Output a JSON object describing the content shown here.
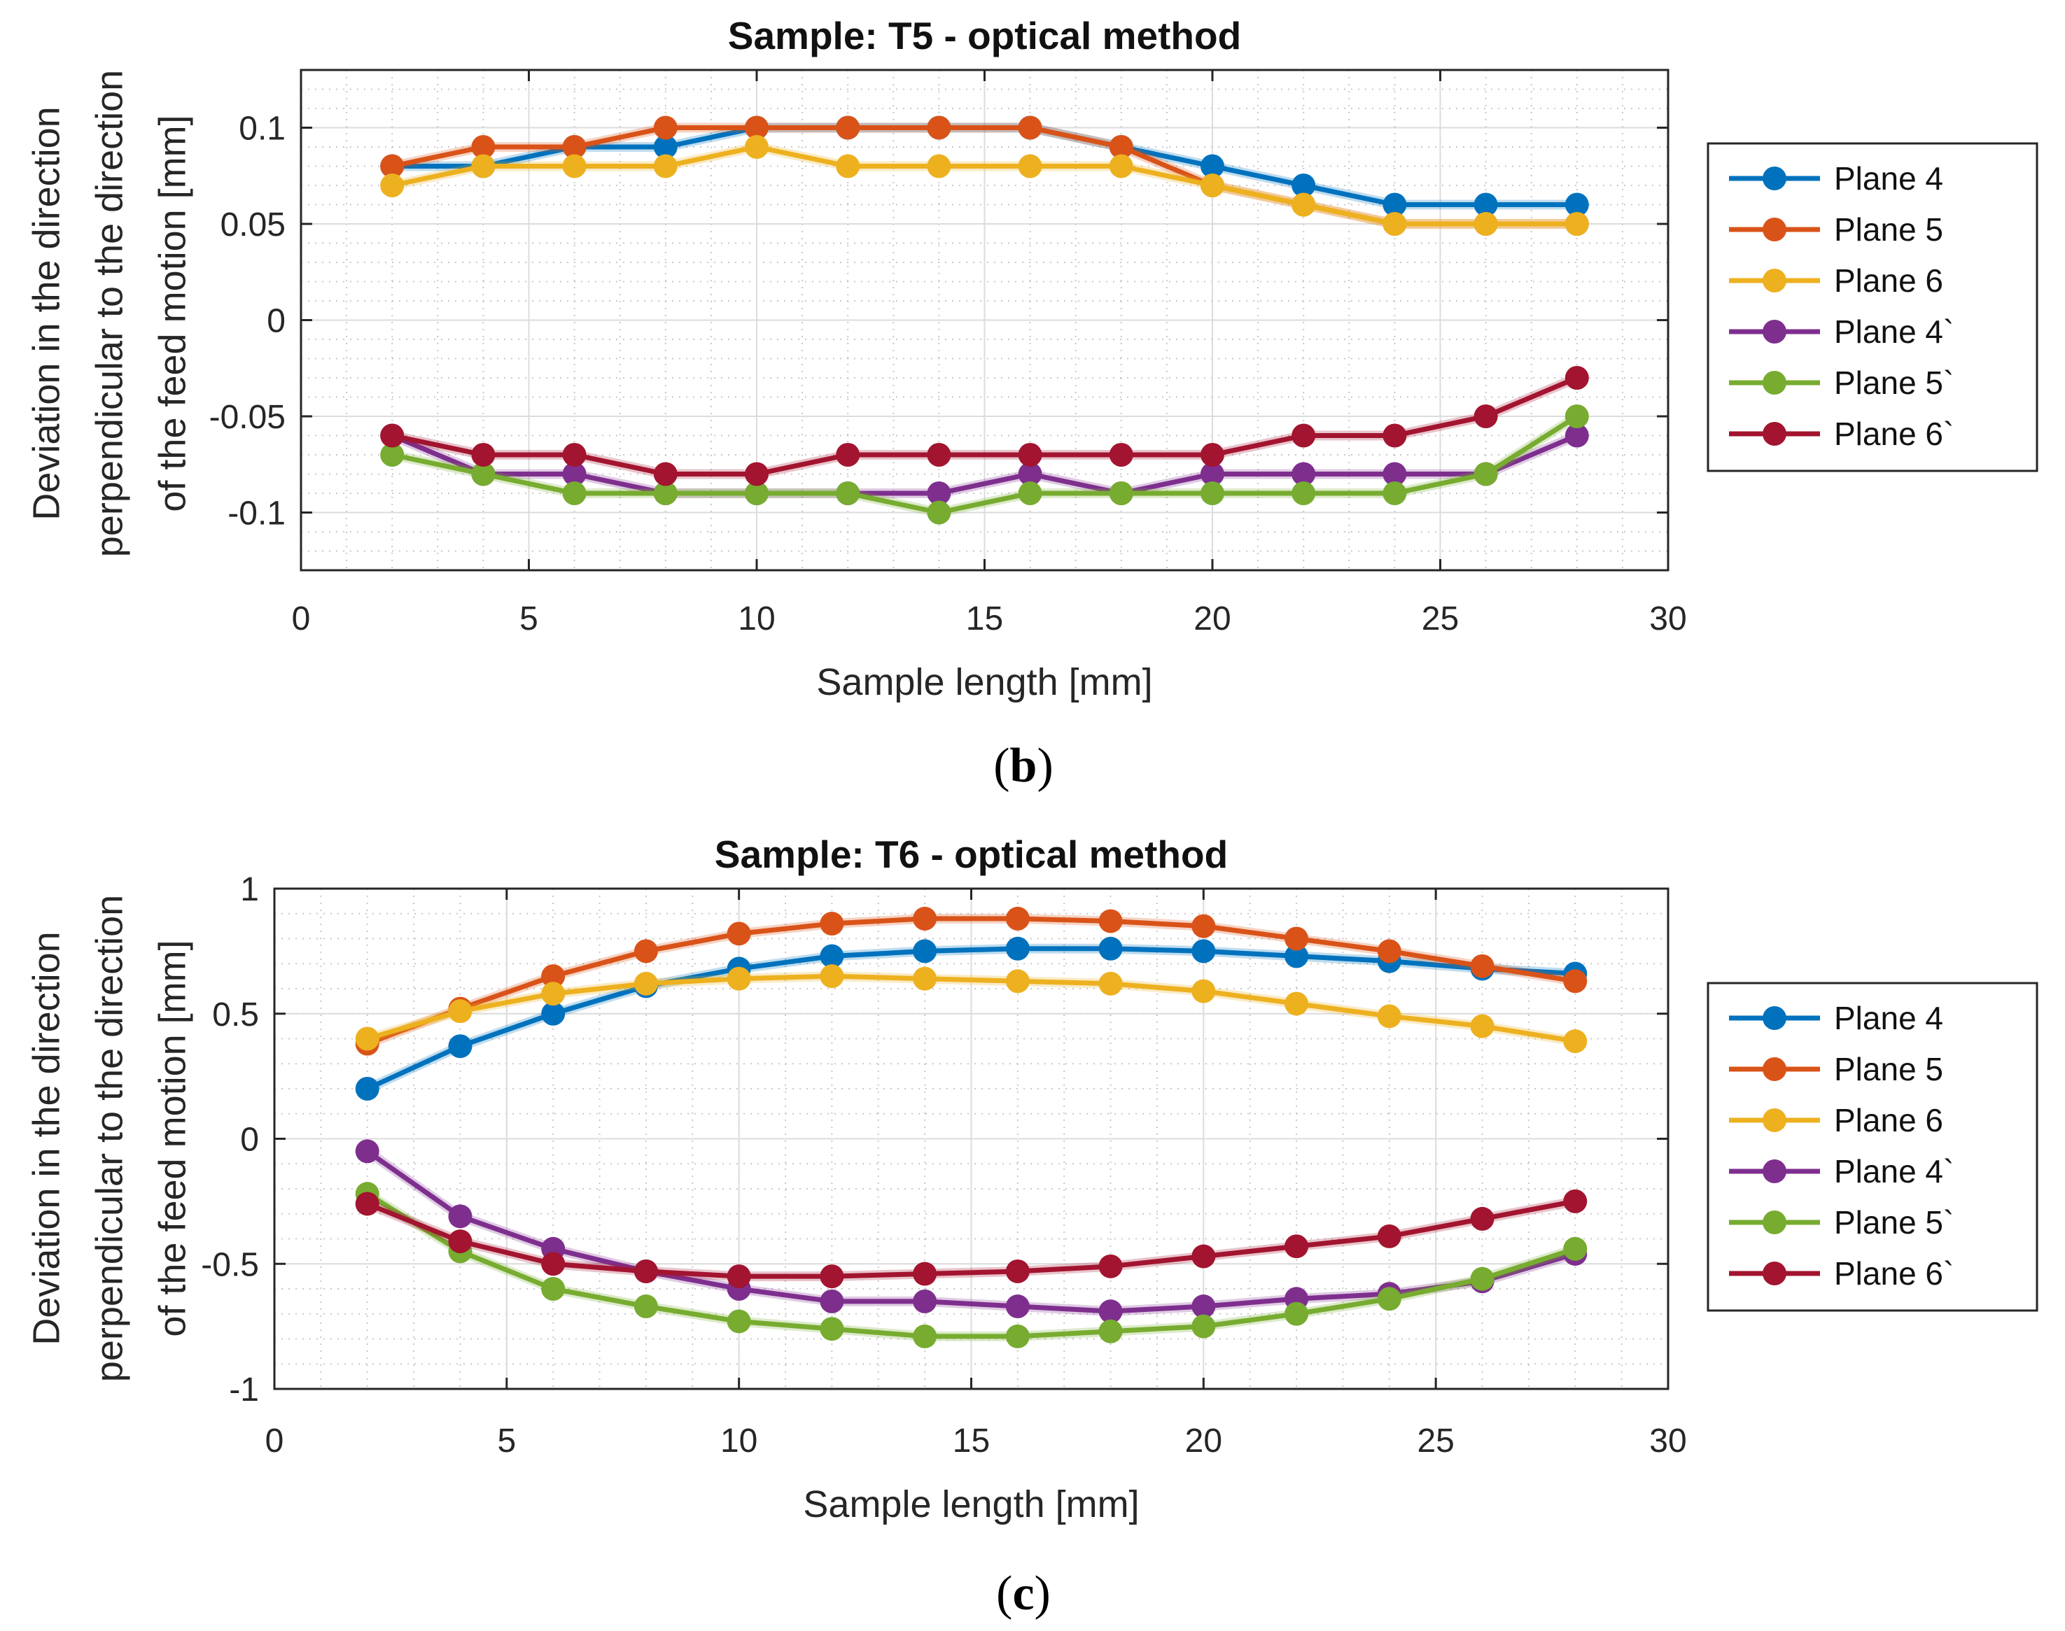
{
  "chart_data": [
    {
      "type": "line",
      "panel_label": "b",
      "title": "Sample: T5 - optical method",
      "xlabel": "Sample length [mm]",
      "ylabel": [
        "Deviation in the direction",
        "perpendicular to the direction",
        "of the feed motion [mm]"
      ],
      "xlim": [
        0,
        30
      ],
      "ylim": [
        -0.13,
        0.13
      ],
      "xticks": [
        0,
        5,
        10,
        15,
        20,
        25,
        30
      ],
      "xtick_labels": [
        "0",
        "5",
        "10",
        "15",
        "20",
        "25",
        "30"
      ],
      "yticks": [
        0.1,
        0.05,
        0,
        -0.05,
        -0.1
      ],
      "ytick_labels": [
        "0.1",
        "0.05",
        "0",
        "-0.05",
        "-0.1"
      ],
      "grid": true,
      "legend_position": "outside-right",
      "x": [
        2,
        4,
        6,
        8,
        10,
        12,
        14,
        16,
        18,
        20,
        22,
        24,
        26,
        28
      ],
      "series": [
        {
          "name": "Plane 4",
          "color": "#0072BD",
          "values": [
            0.08,
            0.08,
            0.09,
            0.09,
            0.1,
            0.1,
            0.1,
            0.1,
            0.09,
            0.08,
            0.07,
            0.06,
            0.06,
            0.06
          ]
        },
        {
          "name": "Plane 5",
          "color": "#D95319",
          "values": [
            0.08,
            0.09,
            0.09,
            0.1,
            0.1,
            0.1,
            0.1,
            0.1,
            0.09,
            0.07,
            0.06,
            0.05,
            0.05,
            0.05
          ]
        },
        {
          "name": "Plane 6",
          "color": "#EDB120",
          "values": [
            0.07,
            0.08,
            0.08,
            0.08,
            0.09,
            0.08,
            0.08,
            0.08,
            0.08,
            0.07,
            0.06,
            0.05,
            0.05,
            0.05
          ]
        },
        {
          "name": "Plane 4`",
          "color": "#7E2F8E",
          "values": [
            -0.06,
            -0.08,
            -0.08,
            -0.09,
            -0.09,
            -0.09,
            -0.09,
            -0.08,
            -0.09,
            -0.08,
            -0.08,
            -0.08,
            -0.08,
            -0.06
          ]
        },
        {
          "name": "Plane 5`",
          "color": "#77AC30",
          "values": [
            -0.07,
            -0.08,
            -0.09,
            -0.09,
            -0.09,
            -0.09,
            -0.1,
            -0.09,
            -0.09,
            -0.09,
            -0.09,
            -0.09,
            -0.08,
            -0.05
          ]
        },
        {
          "name": "Plane 6`",
          "color": "#A2142F",
          "values": [
            -0.06,
            -0.07,
            -0.07,
            -0.08,
            -0.08,
            -0.07,
            -0.07,
            -0.07,
            -0.07,
            -0.07,
            -0.06,
            -0.06,
            -0.05,
            -0.03
          ]
        }
      ]
    },
    {
      "type": "line",
      "panel_label": "c",
      "title": "Sample: T6 - optical method",
      "xlabel": "Sample length [mm]",
      "ylabel": [
        "Deviation in the direction",
        "perpendicular to the direction",
        "of the feed motion [mm]"
      ],
      "xlim": [
        0,
        30
      ],
      "ylim": [
        -1,
        1
      ],
      "xticks": [
        0,
        5,
        10,
        15,
        20,
        25,
        30
      ],
      "xtick_labels": [
        "0",
        "5",
        "10",
        "15",
        "20",
        "25",
        "30"
      ],
      "yticks": [
        1,
        0.5,
        0,
        -0.5,
        -1
      ],
      "ytick_labels": [
        "1",
        "0.5",
        "0",
        "-0.5",
        "-1"
      ],
      "grid": true,
      "legend_position": "outside-right",
      "x": [
        2,
        4,
        6,
        8,
        10,
        12,
        14,
        16,
        18,
        20,
        22,
        24,
        26,
        28
      ],
      "series": [
        {
          "name": "Plane 4",
          "color": "#0072BD",
          "values": [
            0.2,
            0.37,
            0.5,
            0.61,
            0.68,
            0.73,
            0.75,
            0.76,
            0.76,
            0.75,
            0.73,
            0.71,
            0.68,
            0.66
          ]
        },
        {
          "name": "Plane 5",
          "color": "#D95319",
          "values": [
            0.38,
            0.52,
            0.65,
            0.75,
            0.82,
            0.86,
            0.88,
            0.88,
            0.87,
            0.85,
            0.8,
            0.75,
            0.69,
            0.63
          ]
        },
        {
          "name": "Plane 6",
          "color": "#EDB120",
          "values": [
            0.4,
            0.51,
            0.58,
            0.62,
            0.64,
            0.65,
            0.64,
            0.63,
            0.62,
            0.59,
            0.54,
            0.49,
            0.45,
            0.39
          ]
        },
        {
          "name": "Plane 4`",
          "color": "#7E2F8E",
          "values": [
            -0.05,
            -0.31,
            -0.44,
            -0.53,
            -0.6,
            -0.65,
            -0.65,
            -0.67,
            -0.69,
            -0.67,
            -0.64,
            -0.62,
            -0.57,
            -0.46
          ]
        },
        {
          "name": "Plane 5`",
          "color": "#77AC30",
          "values": [
            -0.22,
            -0.45,
            -0.6,
            -0.67,
            -0.73,
            -0.76,
            -0.79,
            -0.79,
            -0.77,
            -0.75,
            -0.7,
            -0.64,
            -0.56,
            -0.44
          ]
        },
        {
          "name": "Plane 6`",
          "color": "#A2142F",
          "values": [
            -0.26,
            -0.41,
            -0.5,
            -0.53,
            -0.55,
            -0.55,
            -0.54,
            -0.53,
            -0.51,
            -0.47,
            -0.43,
            -0.39,
            -0.32,
            -0.25
          ]
        }
      ]
    }
  ]
}
